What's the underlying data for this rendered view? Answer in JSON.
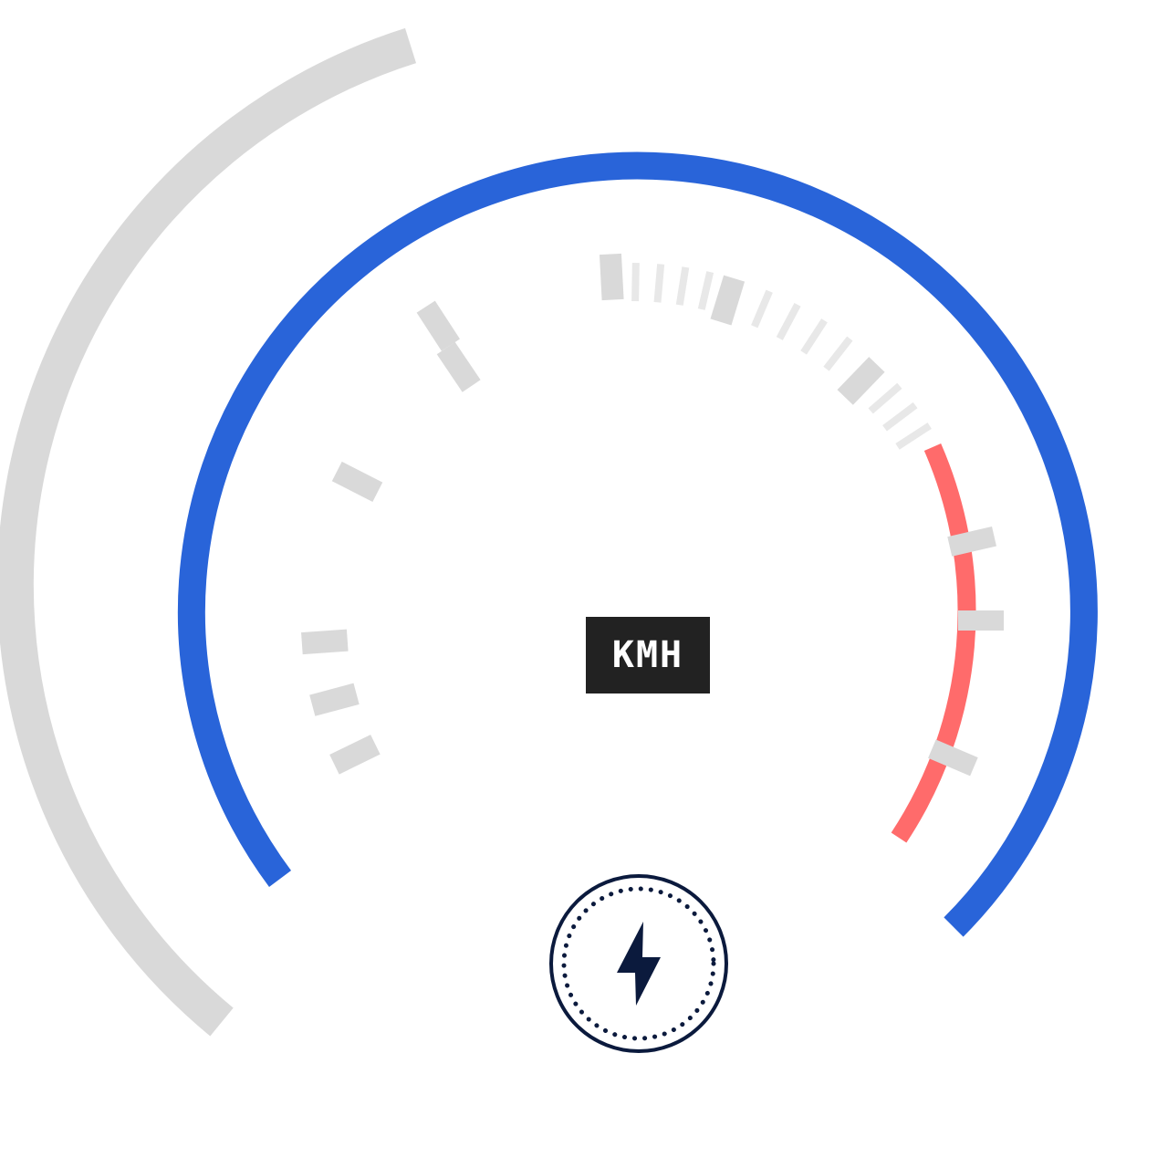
{
  "gauge": {
    "unit_label": "KMH",
    "colors": {
      "outer_ring": "#d9d9d9",
      "main_arc": "#2964d9",
      "redline": "#ff6b6b",
      "tick": "#d9d9d9",
      "minor_tick": "#e8e8e8",
      "badge_bg": "#222222",
      "badge_text": "#ffffff",
      "button_ring": "#0b1a3d"
    }
  },
  "boost_button": {
    "icon": "lightning-bolt-icon"
  }
}
